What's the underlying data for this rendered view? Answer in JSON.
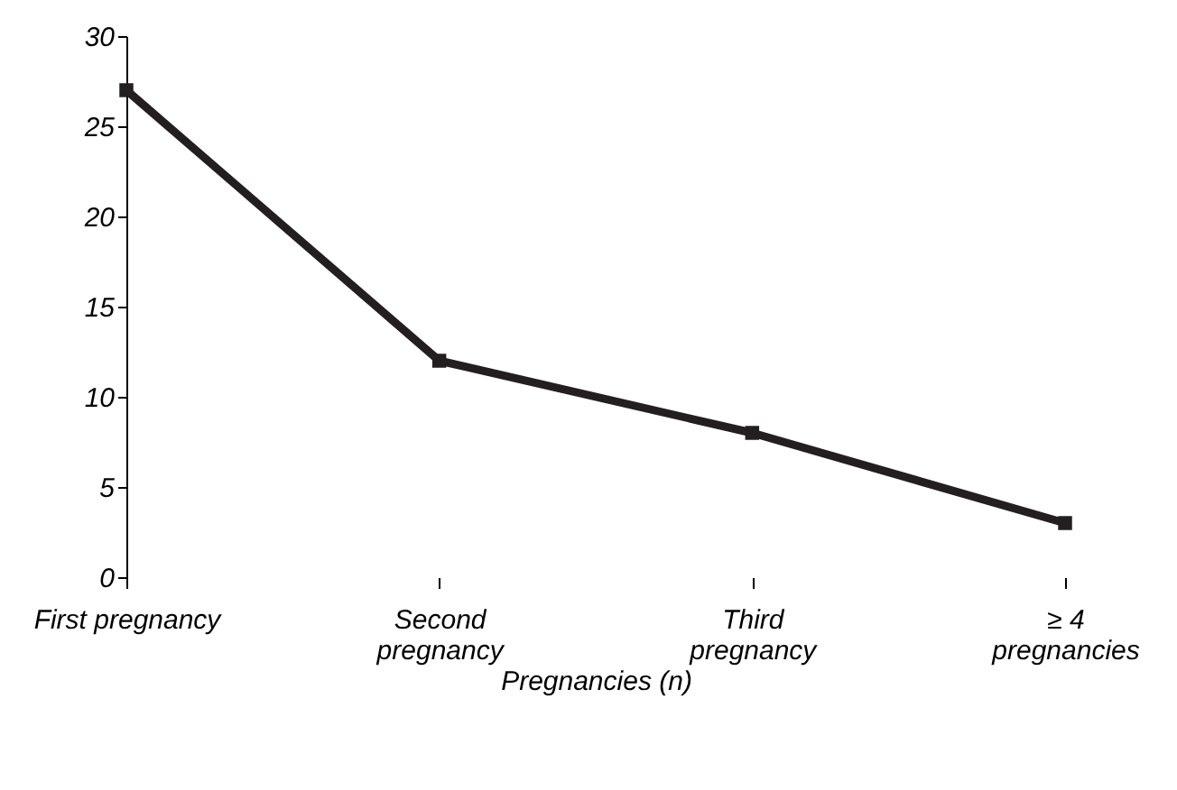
{
  "chart_data": {
    "type": "line",
    "xlabel": "Pregnancies (n)",
    "categories": [
      "First pregnancy",
      "Second\npregnancy",
      "Third\npregnancy",
      "≥ 4\npregnancies"
    ],
    "series": [
      {
        "color": "#231f20",
        "values": [
          27,
          12,
          8,
          3
        ]
      }
    ],
    "ylim": [
      0,
      30
    ],
    "yticks": [
      0,
      5,
      10,
      15,
      20,
      25,
      30
    ],
    "grid": false,
    "marker": "square",
    "line_style": "solid"
  }
}
